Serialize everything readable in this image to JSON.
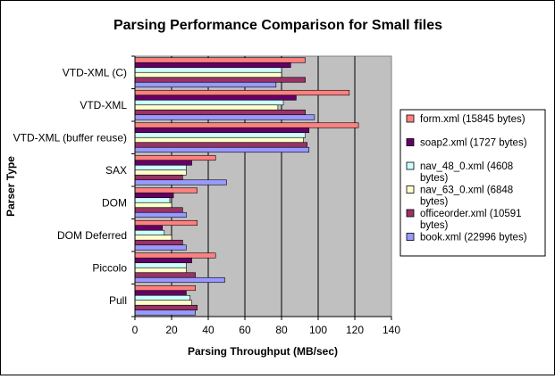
{
  "chart_data": {
    "type": "bar",
    "orientation": "horizontal",
    "title": "Parsing Performance Comparison for Small files",
    "xlabel": "Parsing Throughput (MB/sec)",
    "ylabel": "Parser Type",
    "xlim": [
      0,
      140
    ],
    "xticks": [
      0,
      20,
      40,
      60,
      80,
      100,
      120,
      140
    ],
    "grid": "vertical",
    "plot_background": "#c0c0c0",
    "legend_position": "right",
    "categories": [
      "VTD-XML (C)",
      "VTD-XML",
      "VTD-XML (buffer reuse)",
      "SAX",
      "DOM",
      "DOM Deferred",
      "Piccolo",
      "Pull"
    ],
    "series": [
      {
        "name": "form.xml (15845 bytes)",
        "color": "#ff8080",
        "values": [
          93,
          117,
          122,
          44,
          34,
          34,
          44,
          33
        ]
      },
      {
        "name": "soap2.xml (1727 bytes)",
        "color": "#660066",
        "values": [
          85,
          88,
          95,
          31,
          21,
          15,
          31,
          28
        ]
      },
      {
        "name": "nav_48_0.xml (4608 bytes)",
        "color": "#ccffff",
        "values": [
          80,
          81,
          93,
          28,
          19,
          16,
          28,
          30
        ]
      },
      {
        "name": "nav_63_0.xml (6848 bytes)",
        "color": "#ffffcc",
        "values": [
          80,
          78,
          92,
          28,
          20,
          20,
          28,
          31
        ]
      },
      {
        "name": "officeorder.xml (10591 bytes)",
        "color": "#993366",
        "values": [
          93,
          93,
          94,
          26,
          26,
          26,
          33,
          34
        ]
      },
      {
        "name": "book.xml (22996 bytes)",
        "color": "#9999ff",
        "values": [
          77,
          98,
          95,
          50,
          28,
          28,
          49,
          33
        ]
      }
    ]
  }
}
